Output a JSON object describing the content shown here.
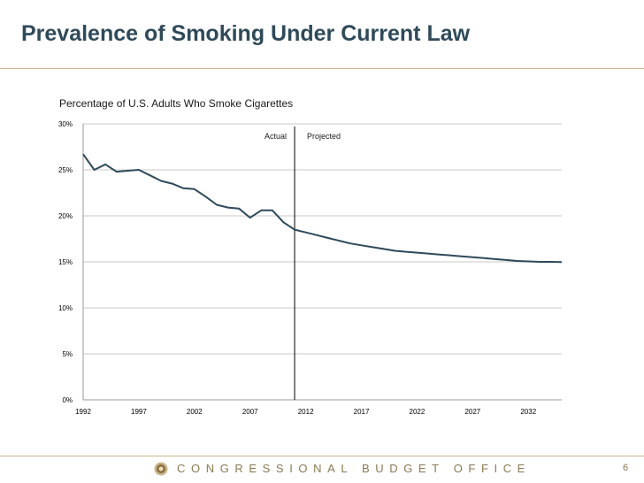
{
  "slide": {
    "title": "Prevalence of Smoking Under Current Law",
    "footer": "CONGRESSIONAL BUDGET OFFICE",
    "page_number": "6"
  },
  "colors": {
    "line": "#2e4a5a",
    "title": "#2e4a5a",
    "accent": "#c9b48a",
    "grid": "#c8c8c8"
  },
  "chart_data": {
    "type": "line",
    "title": "Percentage of U.S. Adults Who Smoke Cigarettes",
    "xlabel": "",
    "ylabel": "",
    "xlim": [
      1992,
      2035
    ],
    "ylim": [
      0,
      30
    ],
    "x_ticks": [
      1992,
      1997,
      2002,
      2007,
      2012,
      2017,
      2022,
      2027,
      2032
    ],
    "y_ticks": [
      0,
      5,
      10,
      15,
      20,
      25,
      30
    ],
    "y_tick_labels": [
      "0%",
      "5%",
      "10%",
      "15%",
      "20%",
      "25%",
      "30%"
    ],
    "grid": true,
    "divider_year": 2011,
    "annotations": {
      "actual": "Actual",
      "projected": "Projected"
    },
    "series": [
      {
        "name": "Percentage of U.S. Adults Who Smoke Cigarettes",
        "x": [
          1992,
          1993,
          1994,
          1995,
          1996,
          1997,
          1998,
          1999,
          2000,
          2001,
          2002,
          2003,
          2004,
          2005,
          2006,
          2007,
          2008,
          2009,
          2010,
          2011,
          2012,
          2013,
          2014,
          2015,
          2016,
          2017,
          2018,
          2019,
          2020,
          2021,
          2022,
          2023,
          2024,
          2025,
          2026,
          2027,
          2028,
          2029,
          2030,
          2031,
          2032,
          2033,
          2034,
          2035
        ],
        "values": [
          26.7,
          25.0,
          25.6,
          24.8,
          24.9,
          25.0,
          24.4,
          23.8,
          23.5,
          23.0,
          22.9,
          22.1,
          21.2,
          20.9,
          20.8,
          19.8,
          20.6,
          20.6,
          19.3,
          18.5,
          18.2,
          17.9,
          17.6,
          17.3,
          17.0,
          16.8,
          16.6,
          16.4,
          16.2,
          16.1,
          16.0,
          15.9,
          15.8,
          15.7,
          15.6,
          15.5,
          15.4,
          15.3,
          15.2,
          15.1,
          15.05,
          15.0,
          15.0,
          14.98
        ]
      }
    ]
  }
}
